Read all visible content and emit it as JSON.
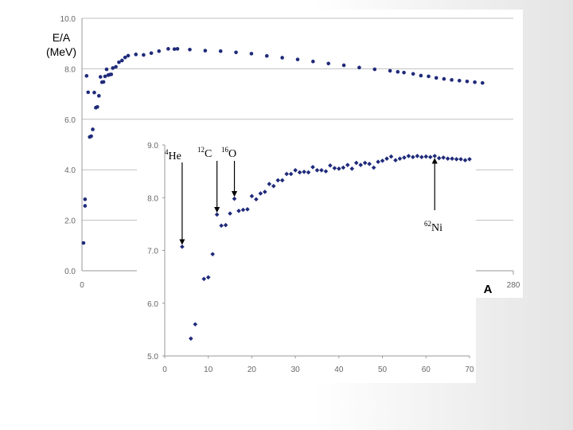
{
  "chart_data": [
    {
      "type": "scatter",
      "title": "",
      "ylabel_line1": "E/A",
      "ylabel_line2": "(MeV)",
      "xlabel": "A",
      "xlim": [
        0,
        280
      ],
      "ylim": [
        0,
        10
      ],
      "x_ticks": [
        "0",
        "280"
      ],
      "y_ticks": [
        "0.0",
        "2.0",
        "4.0",
        "6.0",
        "8.0",
        "10.0"
      ],
      "grid": true,
      "color": "#1f2a7a",
      "points": [
        [
          1,
          1.1
        ],
        [
          2,
          2.57
        ],
        [
          2,
          2.83
        ],
        [
          3,
          7.72
        ],
        [
          4,
          7.07
        ],
        [
          5,
          5.3
        ],
        [
          6,
          5.33
        ],
        [
          7,
          5.6
        ],
        [
          8,
          7.06
        ],
        [
          9,
          6.46
        ],
        [
          10,
          6.49
        ],
        [
          11,
          6.93
        ],
        [
          12,
          7.68
        ],
        [
          13,
          7.47
        ],
        [
          14,
          7.48
        ],
        [
          15,
          7.7
        ],
        [
          16,
          7.98
        ],
        [
          17,
          7.75
        ],
        [
          18,
          7.77
        ],
        [
          19,
          7.78
        ],
        [
          20,
          8.03
        ],
        [
          22,
          8.08
        ],
        [
          24,
          8.26
        ],
        [
          26,
          8.33
        ],
        [
          28,
          8.45
        ],
        [
          30,
          8.52
        ],
        [
          35,
          8.57
        ],
        [
          40,
          8.55
        ],
        [
          45,
          8.62
        ],
        [
          50,
          8.7
        ],
        [
          56,
          8.79
        ],
        [
          60,
          8.78
        ],
        [
          62,
          8.79
        ],
        [
          70,
          8.76
        ],
        [
          80,
          8.72
        ],
        [
          90,
          8.7
        ],
        [
          100,
          8.65
        ],
        [
          110,
          8.6
        ],
        [
          120,
          8.51
        ],
        [
          130,
          8.44
        ],
        [
          140,
          8.37
        ],
        [
          150,
          8.29
        ],
        [
          160,
          8.21
        ],
        [
          170,
          8.14
        ],
        [
          180,
          8.05
        ],
        [
          190,
          7.98
        ],
        [
          200,
          7.92
        ],
        [
          205,
          7.88
        ],
        [
          209,
          7.85
        ],
        [
          215,
          7.8
        ],
        [
          220,
          7.73
        ],
        [
          225,
          7.7
        ],
        [
          230,
          7.64
        ],
        [
          235,
          7.6
        ],
        [
          240,
          7.56
        ],
        [
          245,
          7.53
        ],
        [
          250,
          7.5
        ],
        [
          255,
          7.47
        ],
        [
          260,
          7.44
        ]
      ]
    },
    {
      "type": "scatter",
      "title": "",
      "xlim": [
        0,
        70
      ],
      "ylim": [
        5,
        9
      ],
      "x_ticks": [
        "0",
        "10",
        "20",
        "30",
        "40",
        "50",
        "60",
        "70"
      ],
      "y_ticks": [
        "5.0",
        "6.0",
        "7.0",
        "8.0",
        "9.0"
      ],
      "grid": false,
      "color": "#1f2a7a",
      "points": [
        [
          4,
          7.07
        ],
        [
          6,
          5.33
        ],
        [
          7,
          5.6
        ],
        [
          9,
          6.46
        ],
        [
          10,
          6.49
        ],
        [
          11,
          6.93
        ],
        [
          12,
          7.68
        ],
        [
          13,
          7.47
        ],
        [
          14,
          7.48
        ],
        [
          15,
          7.7
        ],
        [
          16,
          7.98
        ],
        [
          17,
          7.75
        ],
        [
          18,
          7.77
        ],
        [
          19,
          7.78
        ],
        [
          20,
          8.03
        ],
        [
          21,
          7.97
        ],
        [
          22,
          8.08
        ],
        [
          23,
          8.11
        ],
        [
          24,
          8.26
        ],
        [
          25,
          8.22
        ],
        [
          26,
          8.33
        ],
        [
          27,
          8.33
        ],
        [
          28,
          8.45
        ],
        [
          29,
          8.45
        ],
        [
          30,
          8.52
        ],
        [
          31,
          8.48
        ],
        [
          32,
          8.49
        ],
        [
          33,
          8.48
        ],
        [
          34,
          8.58
        ],
        [
          35,
          8.52
        ],
        [
          36,
          8.52
        ],
        [
          37,
          8.5
        ],
        [
          38,
          8.61
        ],
        [
          39,
          8.56
        ],
        [
          40,
          8.55
        ],
        [
          41,
          8.57
        ],
        [
          42,
          8.62
        ],
        [
          43,
          8.55
        ],
        [
          44,
          8.66
        ],
        [
          45,
          8.62
        ],
        [
          46,
          8.66
        ],
        [
          47,
          8.64
        ],
        [
          48,
          8.57
        ],
        [
          49,
          8.68
        ],
        [
          50,
          8.7
        ],
        [
          51,
          8.74
        ],
        [
          52,
          8.78
        ],
        [
          53,
          8.71
        ],
        [
          54,
          8.74
        ],
        [
          55,
          8.76
        ],
        [
          56,
          8.79
        ],
        [
          57,
          8.77
        ],
        [
          58,
          8.79
        ],
        [
          59,
          8.77
        ],
        [
          60,
          8.78
        ],
        [
          61,
          8.77
        ],
        [
          62,
          8.79
        ],
        [
          63,
          8.75
        ],
        [
          64,
          8.76
        ],
        [
          65,
          8.74
        ],
        [
          66,
          8.74
        ],
        [
          67,
          8.73
        ],
        [
          68,
          8.73
        ],
        [
          69,
          8.71
        ],
        [
          70,
          8.73
        ]
      ],
      "annotations": [
        {
          "sup": "4",
          "label": "He",
          "x": 4,
          "y": 7.07
        },
        {
          "sup": "12",
          "label": "C",
          "x": 12,
          "y": 7.68
        },
        {
          "sup": "16",
          "label": "O",
          "x": 16,
          "y": 7.98
        },
        {
          "sup": "62",
          "label": "Ni",
          "x": 62,
          "y": 8.79
        }
      ]
    }
  ]
}
